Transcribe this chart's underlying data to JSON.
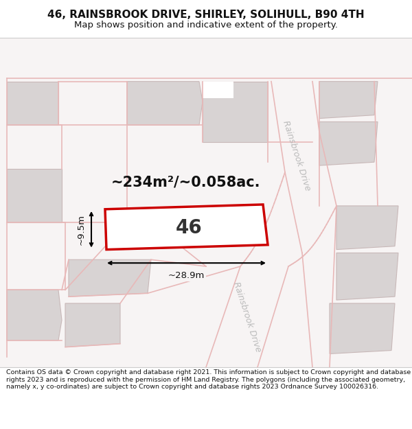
{
  "title_line1": "46, RAINSBROOK DRIVE, SHIRLEY, SOLIHULL, B90 4TH",
  "title_line2": "Map shows position and indicative extent of the property.",
  "footer_text": "Contains OS data © Crown copyright and database right 2021. This information is subject to Crown copyright and database rights 2023 and is reproduced with the permission of HM Land Registry. The polygons (including the associated geometry, namely x, y co-ordinates) are subject to Crown copyright and database rights 2023 Ordnance Survey 100026316.",
  "bg_color": "#f7f4f4",
  "building_fill": "#d8d3d3",
  "building_edge": "#c8b8b8",
  "road_line": "#e8b8b8",
  "highlight_color": "#cc0000",
  "prop_fill": "#ffffff",
  "area_text": "~234m²/~0.058ac.",
  "number_text": "46",
  "dim_width": "~28.9m",
  "dim_height": "~9.5m",
  "road_label_upper": "Rainsbrook Drive",
  "road_label_lower": "Rainsbrook Drive",
  "road_text_color": "#bbbbbb",
  "title_fontsize": 11,
  "subtitle_fontsize": 9.5,
  "footer_fontsize": 6.8
}
